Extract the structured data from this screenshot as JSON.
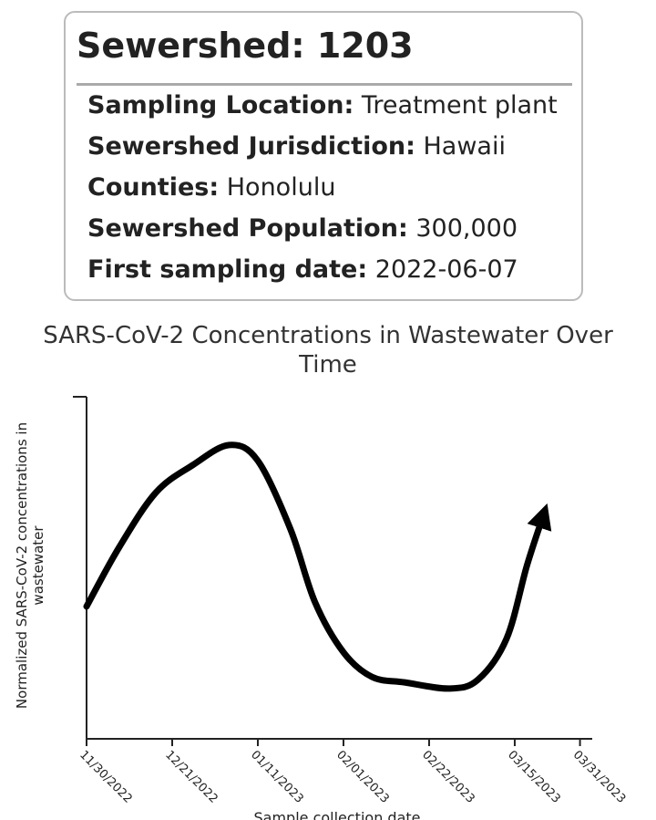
{
  "card": {
    "title": "Sewershed: 1203",
    "rows": [
      {
        "label": "Sampling Location:",
        "value": "Treatment plant"
      },
      {
        "label": "Sewershed Jurisdiction:",
        "value": "Hawaii"
      },
      {
        "label": "Counties:",
        "value": "Honolulu"
      },
      {
        "label": "Sewershed Population:",
        "value": "300,000"
      },
      {
        "label": "First sampling date:",
        "value": "2022-06-07"
      }
    ]
  },
  "chart_data": {
    "type": "line",
    "title": "SARS-CoV-2 Concentrations in Wastewater Over Time",
    "ylabel": "Normalized SARS-CoV-2 concentrations in wastewater",
    "xlabel": "Sample collection date",
    "x": [
      "2022-11-30",
      "2022-12-08",
      "2022-12-17",
      "2022-12-26",
      "2023-01-04",
      "2023-01-11",
      "2023-01-19",
      "2023-01-25",
      "2023-02-01",
      "2023-02-08",
      "2023-02-16",
      "2023-02-27",
      "2023-03-06",
      "2023-03-13",
      "2023-03-18",
      "2023-03-22"
    ],
    "values": [
      38.7,
      56,
      72,
      80,
      85.9,
      81.3,
      61.3,
      40,
      25.3,
      18.1,
      16.5,
      14.7,
      17.3,
      29.3,
      50.7,
      65.3
    ],
    "color": "#000000",
    "ylim": [
      0,
      100
    ],
    "xlim": [
      "2022-11-30",
      "2023-04-03"
    ],
    "xticks": [
      {
        "value": "2022-11-30",
        "label": "11/30/2022"
      },
      {
        "value": "2022-12-21",
        "label": "12/21/2022"
      },
      {
        "value": "2023-01-11",
        "label": "01/11/2023"
      },
      {
        "value": "2023-02-01",
        "label": "02/01/2023"
      },
      {
        "value": "2023-02-22",
        "label": "02/22/2023"
      },
      {
        "value": "2023-03-15",
        "label": "03/15/2023"
      },
      {
        "value": "2023-03-31",
        "label": "03/31/2023"
      }
    ]
  }
}
